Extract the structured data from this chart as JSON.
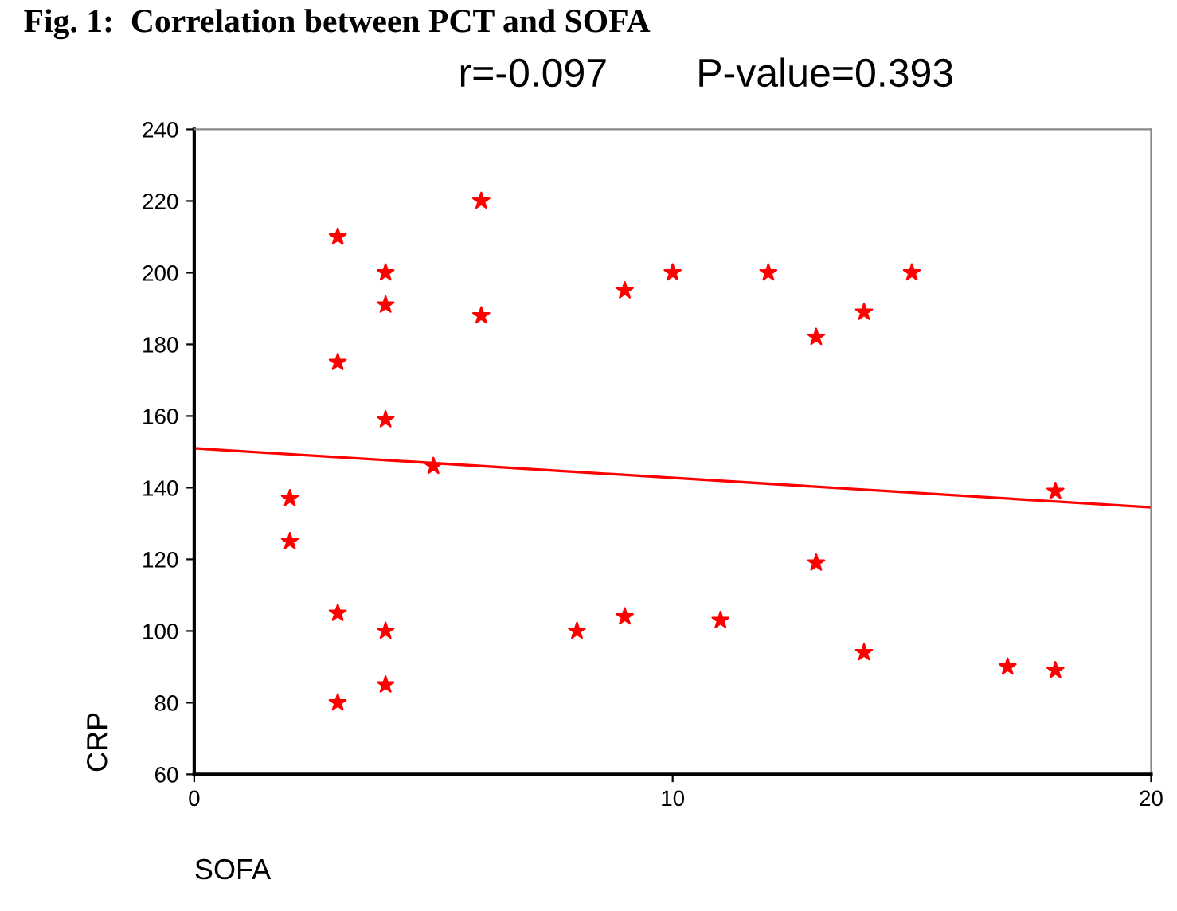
{
  "chart_data": {
    "type": "scatter",
    "title": "Fig. 1:  Correlation between PCT and SOFA",
    "subtitle": "r=-0.097        P-value=0.393",
    "xlabel": "SOFA",
    "ylabel": "CRP",
    "series": [
      {
        "color": "#ff0000",
        "marker": "star",
        "x": [
          2,
          2,
          3,
          3,
          3,
          3,
          4,
          4,
          4,
          4,
          4,
          5,
          6,
          6,
          8,
          9,
          9,
          10,
          11,
          12,
          13,
          13,
          14,
          14,
          15,
          17,
          18,
          18
        ],
        "values": [
          137,
          125,
          210,
          175,
          105,
          80,
          200,
          191,
          159,
          100,
          85,
          146,
          220,
          188,
          100,
          195,
          104,
          200,
          103,
          200,
          182,
          119,
          189,
          94,
          200,
          90,
          139,
          89
        ]
      },
      {
        "type": "line",
        "color": "#ff0000",
        "marker": "none",
        "line_style": "solid",
        "x": [
          0,
          20
        ],
        "values": [
          151,
          134.5
        ]
      }
    ],
    "xlim": [
      0,
      20
    ],
    "xticks": [
      0,
      10,
      20
    ],
    "ylim": [
      60,
      240
    ],
    "yticks": [
      60,
      80,
      100,
      120,
      140,
      160,
      180,
      200,
      220,
      240
    ],
    "grid": false,
    "legend": false
  }
}
